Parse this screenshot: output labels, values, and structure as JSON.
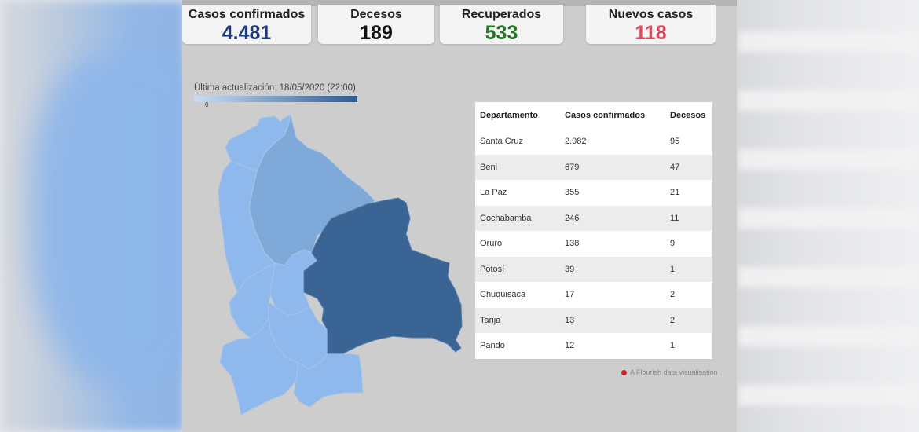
{
  "stats": {
    "confirmed": {
      "label": "Casos confirmados",
      "value": "4.481"
    },
    "deaths": {
      "label": "Decesos",
      "value": "189"
    },
    "recovered": {
      "label": "Recuperados",
      "value": "533"
    },
    "new_cases": {
      "label": "Nuevos casos",
      "value": "118"
    }
  },
  "map": {
    "update_text": "Última actualización: 18/05/2020 (22:00)",
    "legend_min": "0",
    "colors": {
      "low": "#8fb9ec",
      "mid": "#7fa9d8",
      "high": "#3a6493"
    }
  },
  "table": {
    "headers": [
      "Departamento",
      "Casos confirmados",
      "Decesos"
    ],
    "rows": [
      [
        "Santa Cruz",
        "2.982",
        "95"
      ],
      [
        "Beni",
        "679",
        "47"
      ],
      [
        "La Paz",
        "355",
        "21"
      ],
      [
        "Cochabamba",
        "246",
        "11"
      ],
      [
        "Oruro",
        "138",
        "9"
      ],
      [
        "Potosí",
        "39",
        "1"
      ],
      [
        "Chuquisaca",
        "17",
        "2"
      ],
      [
        "Tarija",
        "13",
        "2"
      ],
      [
        "Pando",
        "12",
        "1"
      ]
    ]
  },
  "footer": {
    "credit": "A Flourish data visualisation"
  }
}
